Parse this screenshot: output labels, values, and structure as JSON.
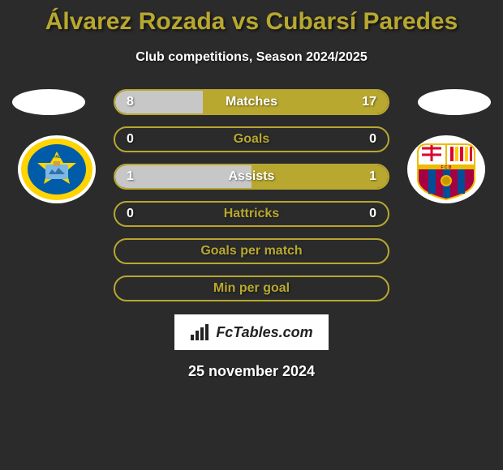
{
  "title": "Álvarez Rozada vs Cubarsí Paredes",
  "subtitle": "Club competitions, Season 2024/2025",
  "date": "25 november 2024",
  "watermark": "FcTables.com",
  "colors": {
    "background": "#2b2b2b",
    "accent": "#b8a82f",
    "fill_left": "#c7c7c7",
    "fill_right": "#b8a82f",
    "text_white": "#ffffff"
  },
  "stats": [
    {
      "label": "Matches",
      "left_value": "8",
      "right_value": "17",
      "left_pct": 32,
      "right_pct": 68,
      "label_color": "white"
    },
    {
      "label": "Goals",
      "left_value": "0",
      "right_value": "0",
      "left_pct": 0,
      "right_pct": 0,
      "label_color": "olive"
    },
    {
      "label": "Assists",
      "left_value": "1",
      "right_value": "1",
      "left_pct": 50,
      "right_pct": 50,
      "label_color": "white"
    },
    {
      "label": "Hattricks",
      "left_value": "0",
      "right_value": "0",
      "left_pct": 0,
      "right_pct": 0,
      "label_color": "olive"
    },
    {
      "label": "Goals per match",
      "left_value": "",
      "right_value": "",
      "left_pct": 0,
      "right_pct": 0,
      "label_color": "olive"
    },
    {
      "label": "Min per goal",
      "left_value": "",
      "right_value": "",
      "left_pct": 0,
      "right_pct": 0,
      "label_color": "olive"
    }
  ],
  "left_club": {
    "name": "Las Palmas",
    "primary": "#005ca9",
    "secondary": "#ffd400",
    "accent": "#7ab8e6"
  },
  "right_club": {
    "name": "Barcelona",
    "stripes": [
      "#a50044",
      "#004d98"
    ],
    "gold": "#edbb00"
  }
}
